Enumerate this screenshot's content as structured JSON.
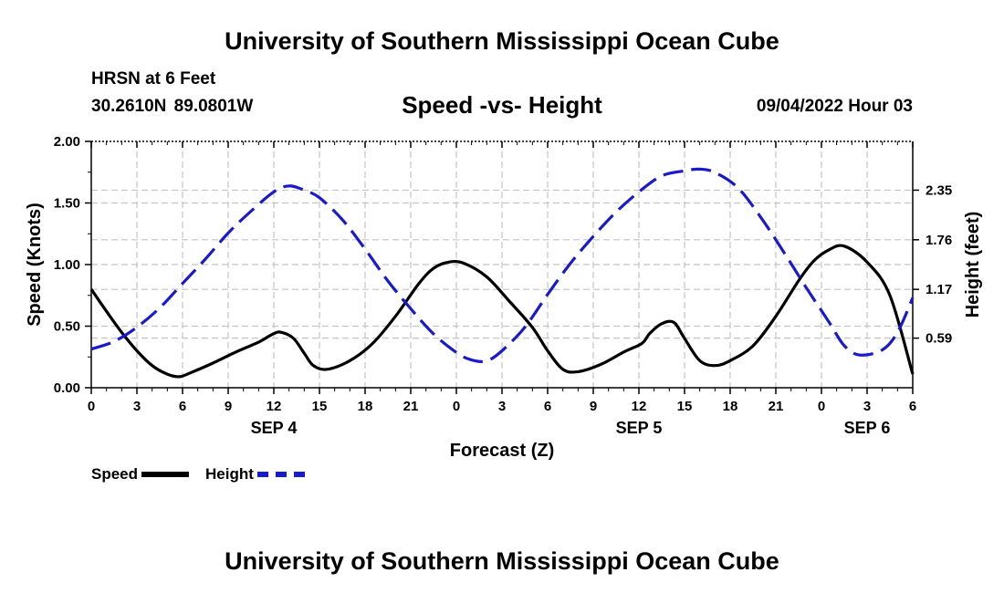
{
  "header": {
    "title": "University of Southern Mississippi Ocean Cube",
    "station": "HRSN at 6 Feet",
    "coords": "30.2610N  89.0801W",
    "subtitle": "Speed -vs- Height",
    "datetime": "09/04/2022 Hour 03"
  },
  "footer": {
    "title": "University of Southern Mississippi Ocean Cube"
  },
  "legend": [
    {
      "label": "Speed",
      "color": "#000000"
    },
    {
      "label": "Height",
      "color": "#1a1acd"
    }
  ],
  "chart_data": {
    "type": "line",
    "title": "Speed -vs- Height",
    "xlabel": "Forecast (Z)",
    "ylabel": "Speed (Knots)",
    "y2label": "Height (feet)",
    "xlim": [
      0,
      54
    ],
    "ylim": [
      0,
      2.0
    ],
    "y2lim": [
      0,
      2.93
    ],
    "x_ticks": [
      0,
      3,
      6,
      9,
      12,
      15,
      18,
      21,
      24,
      27,
      30,
      33,
      36,
      39,
      42,
      45,
      48,
      51,
      54
    ],
    "x_tick_labels": [
      "0",
      "3",
      "6",
      "9",
      "12",
      "15",
      "18",
      "21",
      "0",
      "3",
      "6",
      "9",
      "12",
      "15",
      "18",
      "21",
      "0",
      "3",
      "6"
    ],
    "day_labels": [
      {
        "x": 12,
        "label": "SEP 4"
      },
      {
        "x": 36,
        "label": "SEP 5"
      },
      {
        "x": 51,
        "label": "SEP 6"
      }
    ],
    "y_ticks": [
      0,
      0.5,
      1.0,
      1.5,
      2.0
    ],
    "y_tick_labels": [
      "0.00",
      "0.50",
      "1.00",
      "1.50",
      "2.00"
    ],
    "y2_ticks": [
      0.59,
      1.17,
      1.76,
      2.35
    ],
    "y2_tick_labels": [
      "0.59",
      "1.17",
      "1.76",
      "2.35"
    ],
    "grid": true,
    "series": [
      {
        "name": "Speed",
        "axis": "left",
        "color": "#000000",
        "dash": false,
        "x": [
          0,
          1,
          2,
          3,
          4,
          5,
          5.8,
          6.5,
          8,
          9.5,
          11,
          12,
          12.5,
          13.3,
          14,
          14.6,
          15.5,
          17,
          18.5,
          20,
          21.5,
          22.5,
          23.5,
          24.5,
          26,
          27.5,
          29,
          30,
          31,
          32,
          33.5,
          35,
          36.2,
          36.7,
          37.5,
          38.3,
          39,
          40,
          41,
          42,
          43.5,
          45,
          46.5,
          47.5,
          48.5,
          49.5,
          51,
          52.5,
          54
        ],
        "y": [
          0.8,
          0.62,
          0.45,
          0.3,
          0.18,
          0.11,
          0.09,
          0.12,
          0.2,
          0.29,
          0.37,
          0.44,
          0.45,
          0.4,
          0.28,
          0.18,
          0.15,
          0.22,
          0.36,
          0.58,
          0.84,
          0.97,
          1.02,
          1.01,
          0.9,
          0.7,
          0.49,
          0.3,
          0.15,
          0.13,
          0.19,
          0.29,
          0.36,
          0.44,
          0.52,
          0.53,
          0.4,
          0.22,
          0.18,
          0.22,
          0.34,
          0.58,
          0.87,
          1.03,
          1.12,
          1.15,
          1.02,
          0.75,
          0.11
        ]
      },
      {
        "name": "Height",
        "axis": "right",
        "color": "#1a1acd",
        "dash": true,
        "x": [
          0,
          1.5,
          3,
          4.5,
          6,
          7.5,
          9,
          10.5,
          12,
          13,
          14,
          15,
          16.5,
          18,
          19.5,
          21,
          22.5,
          24,
          25,
          26,
          27,
          28.5,
          30,
          31.5,
          33,
          34.5,
          36,
          37.5,
          39,
          40,
          41,
          42.5,
          44,
          45.5,
          47,
          48.5,
          49.5,
          50.5,
          52,
          53,
          54
        ],
        "y": [
          0.46,
          0.55,
          0.72,
          0.95,
          1.24,
          1.53,
          1.84,
          2.1,
          2.33,
          2.4,
          2.35,
          2.26,
          2.0,
          1.65,
          1.27,
          0.94,
          0.64,
          0.42,
          0.33,
          0.32,
          0.44,
          0.72,
          1.11,
          1.48,
          1.8,
          2.09,
          2.33,
          2.52,
          2.58,
          2.6,
          2.56,
          2.38,
          2.03,
          1.62,
          1.19,
          0.78,
          0.5,
          0.39,
          0.45,
          0.66,
          1.07
        ]
      }
    ]
  }
}
